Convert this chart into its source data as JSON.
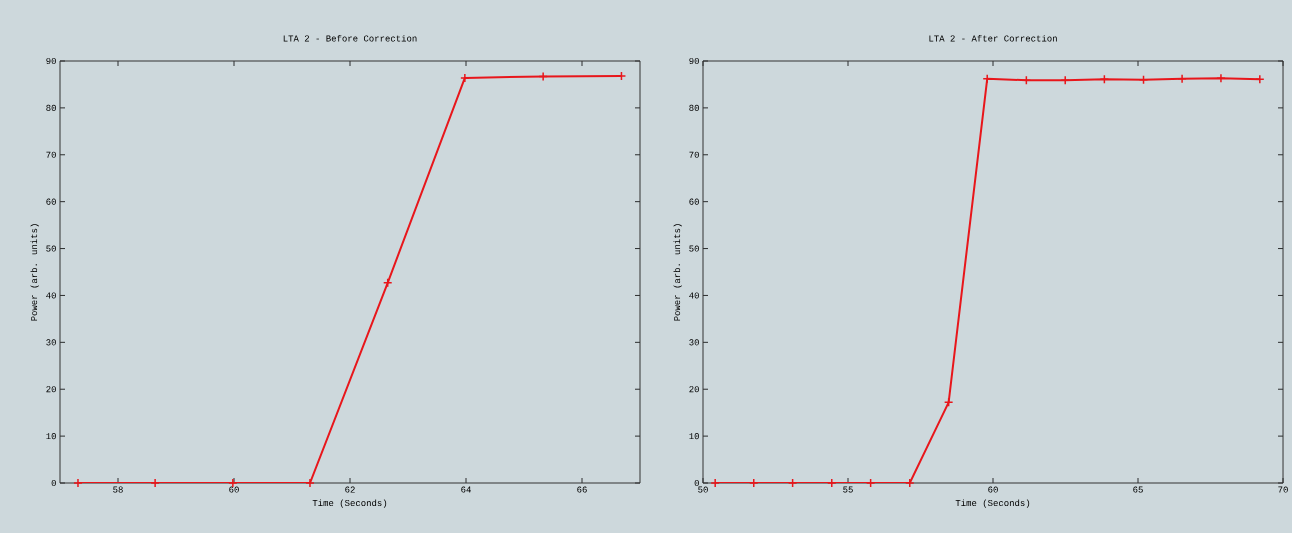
{
  "chart_data": [
    {
      "type": "line",
      "title": "LTA 2 - Before Correction",
      "xlabel": "Time (Seconds)",
      "ylabel": "Power (arb. units)",
      "x": [
        57.31,
        58.64,
        59.98,
        61.31,
        62.65,
        63.98,
        65.33,
        66.68
      ],
      "series": [
        {
          "color": "#e8161b",
          "values": [
            0,
            0,
            0,
            0,
            42.7,
            86.4,
            86.7,
            86.8
          ]
        }
      ],
      "xlim": [
        57,
        67
      ],
      "ylim": [
        0,
        90
      ],
      "xticks": [
        58,
        60,
        62,
        64,
        66
      ],
      "yticks": [
        0,
        10,
        20,
        30,
        40,
        50,
        60,
        70,
        80,
        90
      ],
      "marker": "cross",
      "line_style": "solid"
    },
    {
      "type": "line",
      "title": "LTA 2 - After Correction",
      "xlabel": "Time (Seconds)",
      "ylabel": "Power (arb. units)",
      "x": [
        50.42,
        51.75,
        53.09,
        54.44,
        55.78,
        57.13,
        58.47,
        59.8,
        61.15,
        62.49,
        63.84,
        65.19,
        66.52,
        67.86,
        69.2
      ],
      "series": [
        {
          "color": "#e8161b",
          "values": [
            0,
            0,
            0,
            0,
            0,
            0,
            17.2,
            86.2,
            85.9,
            85.9,
            86.1,
            86.0,
            86.2,
            86.3,
            86.1
          ]
        }
      ],
      "xlim": [
        50,
        70
      ],
      "ylim": [
        0,
        90
      ],
      "xticks": [
        50,
        55,
        60,
        65,
        70
      ],
      "yticks": [
        0,
        10,
        20,
        30,
        40,
        50,
        60,
        70,
        80,
        90
      ],
      "marker": "cross",
      "line_style": "solid"
    }
  ]
}
